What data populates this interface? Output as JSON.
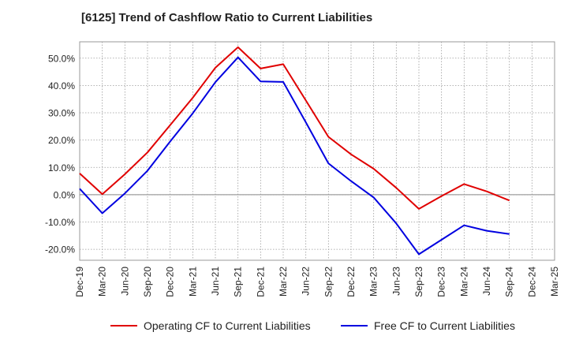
{
  "chart_data": {
    "type": "line",
    "title": "[6125]  Trend of Cashflow Ratio to Current Liabilities",
    "x": [
      "Dec-19",
      "Mar-20",
      "Jun-20",
      "Sep-20",
      "Dec-20",
      "Mar-21",
      "Jun-21",
      "Sep-21",
      "Dec-21",
      "Mar-22",
      "Jun-22",
      "Sep-22",
      "Dec-22",
      "Mar-23",
      "Jun-23",
      "Sep-23",
      "Dec-23",
      "Mar-24",
      "Jun-24",
      "Sep-24",
      "Dec-24",
      "Mar-25"
    ],
    "ylim": [
      -24,
      56
    ],
    "yticks": [
      50,
      40,
      30,
      20,
      10,
      0,
      -10,
      -20
    ],
    "ytick_labels": [
      "50.0%",
      "40.0%",
      "30.0%",
      "20.0%",
      "10.0%",
      "0.0%",
      "-10.0%",
      "-20.0%"
    ],
    "grid": true,
    "legend_position": "bottom",
    "series": [
      {
        "name": "Operating CF to Current Liabilities",
        "color": "#e00000",
        "values": [
          7.8,
          0.2,
          7.5,
          15.5,
          25.5,
          35.5,
          46.5,
          54.0,
          46.2,
          47.8,
          34.5,
          21.2,
          14.8,
          9.5,
          2.5,
          -5.2,
          -0.5,
          3.9,
          1.2,
          -2.1,
          null,
          null
        ]
      },
      {
        "name": "Free CF to Current Liabilities",
        "color": "#0000e0",
        "values": [
          2.2,
          -6.8,
          0.5,
          8.8,
          19.5,
          29.8,
          41.2,
          50.3,
          41.5,
          41.3,
          26.5,
          11.5,
          5.0,
          -1.0,
          -10.5,
          -21.8,
          -16.5,
          -11.2,
          -13.2,
          -14.4,
          null,
          null
        ]
      }
    ]
  }
}
